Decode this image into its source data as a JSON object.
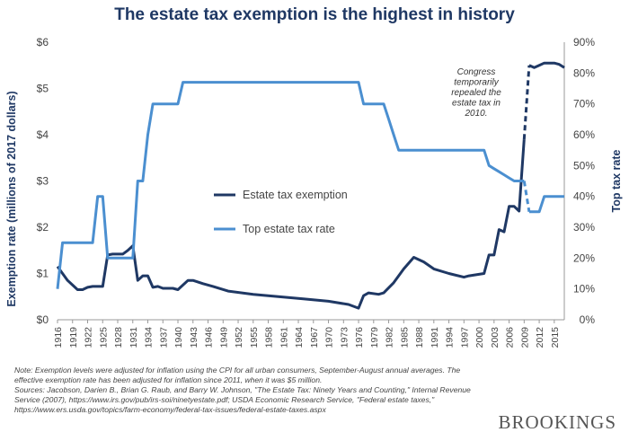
{
  "title": "The estate tax exemption is the highest in history",
  "chart_data": {
    "type": "line",
    "y_left_label": "Exemption rate (millions of 2017 dollars)",
    "y_right_label": "Top tax rate",
    "y_left_ticks": [
      "$0",
      "$1",
      "$2",
      "$3",
      "$4",
      "$5",
      "$6"
    ],
    "y_right_ticks": [
      "0%",
      "10%",
      "20%",
      "30%",
      "40%",
      "50%",
      "60%",
      "70%",
      "80%",
      "90%"
    ],
    "y_left_range": [
      0,
      6
    ],
    "y_right_range": [
      0,
      90
    ],
    "x_range": [
      1916,
      2017
    ],
    "x_ticks": [
      "1916",
      "1919",
      "1922",
      "1925",
      "1928",
      "1931",
      "1934",
      "1937",
      "1940",
      "1943",
      "1946",
      "1949",
      "1952",
      "1955",
      "1958",
      "1961",
      "1964",
      "1967",
      "1970",
      "1973",
      "1976",
      "1979",
      "1982",
      "1985",
      "1988",
      "1991",
      "1994",
      "1997",
      "2000",
      "2003",
      "2006",
      "2009",
      "2012",
      "2015"
    ],
    "grid": false,
    "series": [
      {
        "name": "Estate tax exemption",
        "axis": "left",
        "color": "#1f3864",
        "values": [
          [
            1916,
            1.15
          ],
          [
            1917,
            1.0
          ],
          [
            1918,
            0.85
          ],
          [
            1919,
            0.75
          ],
          [
            1920,
            0.65
          ],
          [
            1921,
            0.65
          ],
          [
            1922,
            0.7
          ],
          [
            1923,
            0.72
          ],
          [
            1924,
            0.72
          ],
          [
            1925,
            0.72
          ],
          [
            1926,
            1.4
          ],
          [
            1927,
            1.42
          ],
          [
            1928,
            1.42
          ],
          [
            1929,
            1.42
          ],
          [
            1930,
            1.5
          ],
          [
            1931,
            1.6
          ],
          [
            1932,
            0.85
          ],
          [
            1933,
            0.95
          ],
          [
            1934,
            0.95
          ],
          [
            1935,
            0.7
          ],
          [
            1936,
            0.72
          ],
          [
            1937,
            0.68
          ],
          [
            1938,
            0.68
          ],
          [
            1939,
            0.68
          ],
          [
            1940,
            0.65
          ],
          [
            1942,
            0.85
          ],
          [
            1943,
            0.85
          ],
          [
            1945,
            0.78
          ],
          [
            1947,
            0.72
          ],
          [
            1950,
            0.62
          ],
          [
            1955,
            0.55
          ],
          [
            1960,
            0.5
          ],
          [
            1965,
            0.45
          ],
          [
            1970,
            0.4
          ],
          [
            1974,
            0.33
          ],
          [
            1976,
            0.25
          ],
          [
            1977,
            0.52
          ],
          [
            1978,
            0.58
          ],
          [
            1980,
            0.55
          ],
          [
            1981,
            0.58
          ],
          [
            1983,
            0.8
          ],
          [
            1985,
            1.1
          ],
          [
            1987,
            1.35
          ],
          [
            1989,
            1.25
          ],
          [
            1991,
            1.1
          ],
          [
            1994,
            1.0
          ],
          [
            1997,
            0.92
          ],
          [
            1998,
            0.95
          ],
          [
            2001,
            1.0
          ],
          [
            2002,
            1.4
          ],
          [
            2003,
            1.4
          ],
          [
            2004,
            1.95
          ],
          [
            2005,
            1.9
          ],
          [
            2006,
            2.45
          ],
          [
            2007,
            2.45
          ],
          [
            2008,
            2.35
          ],
          [
            2009,
            3.9
          ]
        ],
        "dashed": [
          [
            2009,
            3.9
          ],
          [
            2010,
            5.5
          ]
        ],
        "values_after": [
          [
            2010,
            5.5
          ],
          [
            2011,
            5.45
          ],
          [
            2012,
            5.5
          ],
          [
            2013,
            5.55
          ],
          [
            2014,
            5.55
          ],
          [
            2015,
            5.55
          ],
          [
            2016,
            5.52
          ],
          [
            2017,
            5.45
          ]
        ]
      },
      {
        "name": "Top estate tax rate",
        "axis": "right",
        "color": "#4b8fd0",
        "values": [
          [
            1916,
            10
          ],
          [
            1917,
            25
          ],
          [
            1918,
            25
          ],
          [
            1919,
            25
          ],
          [
            1920,
            25
          ],
          [
            1921,
            25
          ],
          [
            1922,
            25
          ],
          [
            1923,
            25
          ],
          [
            1924,
            40
          ],
          [
            1925,
            40
          ],
          [
            1926,
            20
          ],
          [
            1927,
            20
          ],
          [
            1928,
            20
          ],
          [
            1929,
            20
          ],
          [
            1930,
            20
          ],
          [
            1931,
            20
          ],
          [
            1932,
            45
          ],
          [
            1933,
            45
          ],
          [
            1934,
            60
          ],
          [
            1935,
            70
          ],
          [
            1936,
            70
          ],
          [
            1937,
            70
          ],
          [
            1938,
            70
          ],
          [
            1939,
            70
          ],
          [
            1940,
            70
          ],
          [
            1941,
            77
          ],
          [
            1942,
            77
          ],
          [
            1950,
            77
          ],
          [
            1960,
            77
          ],
          [
            1970,
            77
          ],
          [
            1976,
            77
          ],
          [
            1977,
            70
          ],
          [
            1978,
            70
          ],
          [
            1979,
            70
          ],
          [
            1980,
            70
          ],
          [
            1981,
            70
          ],
          [
            1982,
            65
          ],
          [
            1983,
            60
          ],
          [
            1984,
            55
          ],
          [
            1985,
            55
          ],
          [
            1990,
            55
          ],
          [
            1995,
            55
          ],
          [
            2000,
            55
          ],
          [
            2001,
            55
          ],
          [
            2002,
            50
          ],
          [
            2003,
            49
          ],
          [
            2004,
            48
          ],
          [
            2005,
            47
          ],
          [
            2006,
            46
          ],
          [
            2007,
            45
          ],
          [
            2008,
            45
          ],
          [
            2009,
            45
          ]
        ],
        "dashed": [
          [
            2009,
            45
          ],
          [
            2010,
            35
          ]
        ],
        "values_after": [
          [
            2010,
            35
          ],
          [
            2011,
            35
          ],
          [
            2012,
            35
          ],
          [
            2013,
            40
          ],
          [
            2014,
            40
          ],
          [
            2015,
            40
          ],
          [
            2016,
            40
          ],
          [
            2017,
            40
          ]
        ]
      }
    ],
    "annotation": "Congress temporarily repealed the estate tax in 2010."
  },
  "note": "Note: Exemption levels were adjusted for inflation using the CPI for all urban consumers, September-August annual averages. The effective exemption rate has been adjusted for inflation since 2011, when it was $5 million.\nSources: Jacobson, Darien B., Brian G. Raub, and Barry W. Johnson, \"The Estate Tax: Ninety Years and Counting,\" Internal Revenue Service (2007), https://www.irs.gov/pub/irs-soi/ninetyestate.pdf; USDA Economic Research Service, \"Federal estate taxes,\" https://www.ers.usda.gov/topics/farm-economy/federal-tax-issues/federal-estate-taxes.aspx",
  "brand": "BROOKINGS"
}
